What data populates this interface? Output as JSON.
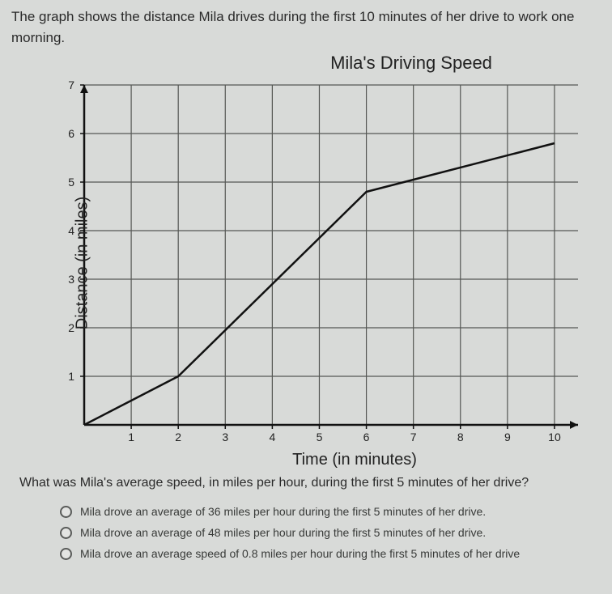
{
  "prompt_line1": "The graph shows the distance Mila drives during the first 10 minutes of her drive to work one",
  "prompt_line2": "morning.",
  "chart": {
    "title": "Mila's Driving Speed",
    "ylabel": "Distance (in miles)",
    "xlabel": "Time (in minutes)",
    "xlim": [
      0,
      10.5
    ],
    "ylim": [
      0,
      7
    ],
    "xtick_labels": [
      "1",
      "2",
      "3",
      "4",
      "5",
      "6",
      "7",
      "8",
      "9",
      "10"
    ],
    "ytick_labels": [
      "1",
      "2",
      "3",
      "4",
      "5",
      "6",
      "7"
    ],
    "grid_color": "#555754",
    "line_color": "#111",
    "line_width": 2.5,
    "background_color": "#d7d9d6",
    "axis_color": "#111",
    "axis_width": 2.5,
    "tick_fontsize": 14,
    "series": [
      {
        "x": 0,
        "y": 0
      },
      {
        "x": 2,
        "y": 1
      },
      {
        "x": 6,
        "y": 4.8
      },
      {
        "x": 10,
        "y": 5.8
      }
    ]
  },
  "question": "What was Mila's average speed, in miles per hour, during the first 5 minutes of her drive?",
  "options": [
    "Mila drove an average of 36 miles per hour during the first 5 minutes of her drive.",
    "Mila drove an average of 48 miles per hour during the first 5 minutes of her drive.",
    "Mila drove an average speed of 0.8 miles per hour during the first 5 minutes of her drive"
  ]
}
